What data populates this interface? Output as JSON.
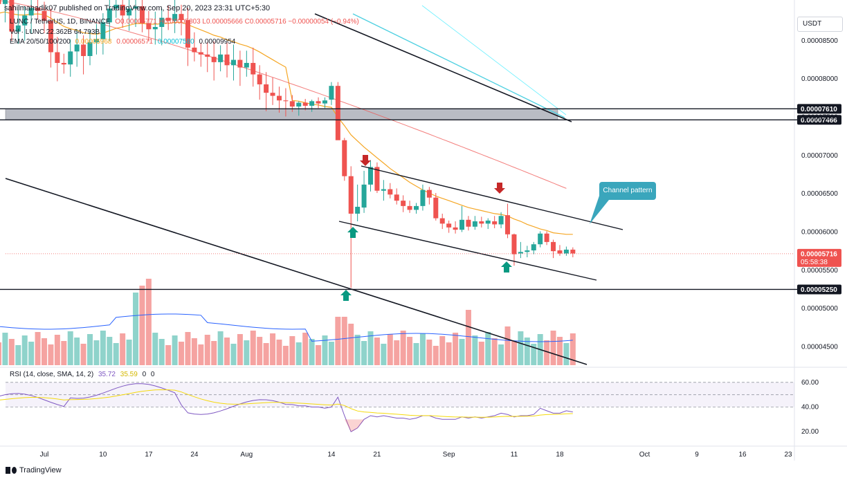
{
  "header": {
    "caption": "sahilmahadik07 published on TradingView.com, Sep 20, 2023 23:31 UTC+5:30"
  },
  "legend": {
    "symbol_line": "LUNC / TetherUS, 1D, BINANCE",
    "ohlc": "O0.00005771  H0.00005803  L0.00005666  C0.00005716  −0.00000054 (−0.94%)",
    "vol_line": "Vol · LUNC  22.362B  64.793B",
    "ema_label": "EMA 20/50/100/200",
    "ema_values": [
      "0.00005968",
      "0.00006571",
      "0.00007580",
      "0.00009954"
    ],
    "rsi_line": "RSI (14, close, SMA, 14, 2)",
    "rsi_values": [
      "35.72",
      "35.59",
      "0",
      "0"
    ]
  },
  "currency_button": "USDT",
  "callout_text": "Channel pattern",
  "footer_brand": "TradingView",
  "colors": {
    "up": "#26a69a",
    "down": "#ef5350",
    "ema20": "#f5a623",
    "ema50": "#ef5350",
    "ema100": "#4dd0e1",
    "ema200": "#00e5ff",
    "rsi": "#7e57c2",
    "rsi_ma": "#f5d90a",
    "volume_ma": "#2962ff",
    "callout": "#3aa6bc",
    "arrow_up": "#089981",
    "arrow_down": "#c62828"
  },
  "chart_data": {
    "type": "candlestick",
    "symbol": "LUNC / TetherUS",
    "interval": "1D",
    "exchange": "BINANCE",
    "price_axis": {
      "ticks": [
        8.5e-05,
        8e-05,
        7.5e-05,
        7e-05,
        6.5e-05,
        6e-05,
        5.5e-05,
        5e-05,
        4.5e-05
      ],
      "tick_labels": [
        "0.00008500",
        "0.00008000",
        "0.00007500",
        "0.00007000",
        "0.00006500",
        "0.00006000",
        "0.00005500",
        "0.00005000",
        "0.00004500"
      ],
      "range": [
        4.26e-05,
        8.96e-05
      ]
    },
    "time_axis": {
      "labels": [
        "Jul",
        "10",
        "17",
        "24",
        "Aug",
        "14",
        "21",
        "Sep",
        "11",
        "18",
        "Oct",
        "9",
        "16",
        "23"
      ]
    },
    "levels": [
      {
        "price": 7.61e-05,
        "label": "0.00007610"
      },
      {
        "price": 7.466e-05,
        "label": "0.00007466"
      },
      {
        "price": 5.25e-05,
        "label": "0.00005250"
      }
    ],
    "supply_zone": [
      7.466e-05,
      7.61e-05
    ],
    "last_price": {
      "value": 5.716e-05,
      "label": "0.00005716",
      "countdown": "05:58:38"
    },
    "candles_recent": [
      {
        "date": "Aug 8",
        "o": 7.71e-05,
        "h": 7.79e-05,
        "l": 7.57e-05,
        "c": 7.64e-05
      },
      {
        "date": "Aug 9",
        "o": 7.64e-05,
        "h": 7.71e-05,
        "l": 7.52e-05,
        "c": 7.69e-05
      },
      {
        "date": "Aug 10",
        "o": 7.69e-05,
        "h": 7.74e-05,
        "l": 7.59e-05,
        "c": 7.65e-05
      },
      {
        "date": "Aug 11",
        "o": 7.65e-05,
        "h": 7.73e-05,
        "l": 7.57e-05,
        "c": 7.71e-05
      },
      {
        "date": "Aug 12",
        "o": 7.71e-05,
        "h": 7.76e-05,
        "l": 7.62e-05,
        "c": 7.68e-05
      },
      {
        "date": "Aug 13",
        "o": 7.68e-05,
        "h": 7.76e-05,
        "l": 7.62e-05,
        "c": 7.72e-05
      },
      {
        "date": "Aug 14",
        "o": 7.73e-05,
        "h": 7.96e-05,
        "l": 7.66e-05,
        "c": 7.91e-05
      },
      {
        "date": "Aug 15",
        "o": 7.91e-05,
        "h": 7.96e-05,
        "l": 7.22e-05,
        "c": 7.2e-05
      },
      {
        "date": "Aug 16",
        "o": 7.2e-05,
        "h": 7.23e-05,
        "l": 6.67e-05,
        "c": 6.73e-05
      },
      {
        "date": "Aug 17",
        "o": 6.73e-05,
        "h": 6.86e-05,
        "l": 5.27e-05,
        "c": 6.24e-05
      },
      {
        "date": "Aug 18",
        "o": 6.24e-05,
        "h": 6.62e-05,
        "l": 6.14e-05,
        "c": 6.33e-05
      },
      {
        "date": "Aug 19",
        "o": 6.32e-05,
        "h": 6.8e-05,
        "l": 6.25e-05,
        "c": 6.62e-05
      },
      {
        "date": "Aug 20",
        "o": 6.62e-05,
        "h": 6.94e-05,
        "l": 6.53e-05,
        "c": 6.85e-05
      },
      {
        "date": "Aug 21",
        "o": 6.85e-05,
        "h": 6.91e-05,
        "l": 6.51e-05,
        "c": 6.54e-05
      },
      {
        "date": "Aug 22",
        "o": 6.54e-05,
        "h": 6.68e-05,
        "l": 6.41e-05,
        "c": 6.56e-05
      },
      {
        "date": "Aug 23",
        "o": 6.56e-05,
        "h": 6.64e-05,
        "l": 6.44e-05,
        "c": 6.49e-05
      },
      {
        "date": "Aug 24",
        "o": 6.49e-05,
        "h": 6.57e-05,
        "l": 6.36e-05,
        "c": 6.41e-05
      },
      {
        "date": "Aug 25",
        "o": 6.41e-05,
        "h": 6.48e-05,
        "l": 6.26e-05,
        "c": 6.34e-05
      },
      {
        "date": "Aug 26",
        "o": 6.34e-05,
        "h": 6.41e-05,
        "l": 6.25e-05,
        "c": 6.29e-05
      },
      {
        "date": "Aug 27",
        "o": 6.29e-05,
        "h": 6.38e-05,
        "l": 6.24e-05,
        "c": 6.34e-05
      },
      {
        "date": "Aug 28",
        "o": 6.34e-05,
        "h": 6.62e-05,
        "l": 6.28e-05,
        "c": 6.55e-05
      },
      {
        "date": "Aug 29",
        "o": 6.55e-05,
        "h": 6.59e-05,
        "l": 6.36e-05,
        "c": 6.45e-05
      },
      {
        "date": "Aug 30",
        "o": 6.45e-05,
        "h": 6.51e-05,
        "l": 6.15e-05,
        "c": 6.18e-05
      },
      {
        "date": "Aug 31",
        "o": 6.18e-05,
        "h": 6.24e-05,
        "l": 6.04e-05,
        "c": 6.11e-05
      },
      {
        "date": "Sep 1",
        "o": 6.11e-05,
        "h": 6.15e-05,
        "l": 5.99e-05,
        "c": 6.06e-05
      },
      {
        "date": "Sep 2",
        "o": 6.06e-05,
        "h": 6.14e-05,
        "l": 5.98e-05,
        "c": 6.03e-05
      },
      {
        "date": "Sep 3",
        "o": 6.03e-05,
        "h": 6.34e-05,
        "l": 6e-05,
        "c": 6.16e-05
      },
      {
        "date": "Sep 4",
        "o": 6.16e-05,
        "h": 6.21e-05,
        "l": 6.02e-05,
        "c": 6.07e-05
      },
      {
        "date": "Sep 5",
        "o": 6.07e-05,
        "h": 6.21e-05,
        "l": 6.03e-05,
        "c": 6.14e-05
      },
      {
        "date": "Sep 6",
        "o": 6.14e-05,
        "h": 6.2e-05,
        "l": 6.06e-05,
        "c": 6.11e-05
      },
      {
        "date": "Sep 7",
        "o": 6.11e-05,
        "h": 6.18e-05,
        "l": 6.04e-05,
        "c": 6.15e-05
      },
      {
        "date": "Sep 8",
        "o": 6.14e-05,
        "h": 6.21e-05,
        "l": 6.05e-05,
        "c": 6.1e-05
      },
      {
        "date": "Sep 9",
        "o": 6.1e-05,
        "h": 6.26e-05,
        "l": 6.05e-05,
        "c": 6.21e-05
      },
      {
        "date": "Sep 10",
        "o": 6.22e-05,
        "h": 6.37e-05,
        "l": 5.92e-05,
        "c": 5.97e-05
      },
      {
        "date": "Sep 11",
        "o": 5.97e-05,
        "h": 5.98e-05,
        "l": 5.56e-05,
        "c": 5.71e-05
      },
      {
        "date": "Sep 12",
        "o": 5.72e-05,
        "h": 5.87e-05,
        "l": 5.66e-05,
        "c": 5.74e-05
      },
      {
        "date": "Sep 13",
        "o": 5.74e-05,
        "h": 5.82e-05,
        "l": 5.67e-05,
        "c": 5.76e-05
      },
      {
        "date": "Sep 14",
        "o": 5.76e-05,
        "h": 5.87e-05,
        "l": 5.71e-05,
        "c": 5.84e-05
      },
      {
        "date": "Sep 15",
        "o": 5.84e-05,
        "h": 6.01e-05,
        "l": 5.8e-05,
        "c": 5.98e-05
      },
      {
        "date": "Sep 16",
        "o": 5.98e-05,
        "h": 6.01e-05,
        "l": 5.83e-05,
        "c": 5.87e-05
      },
      {
        "date": "Sep 17",
        "o": 5.87e-05,
        "h": 5.9e-05,
        "l": 5.66e-05,
        "c": 5.75e-05
      },
      {
        "date": "Sep 18",
        "o": 5.76e-05,
        "h": 5.83e-05,
        "l": 5.69e-05,
        "c": 5.72e-05
      },
      {
        "date": "Sep 19",
        "o": 5.72e-05,
        "h": 5.81e-05,
        "l": 5.69e-05,
        "c": 5.77e-05
      },
      {
        "date": "Sep 20",
        "o": 5.77e-05,
        "h": 5.8e-05,
        "l": 5.67e-05,
        "c": 5.72e-05
      }
    ],
    "ema20_values": [
      7.72e-05,
      7.71e-05,
      7.69e-05,
      7.67e-05,
      7.66e-05,
      7.64e-05,
      7.63e-05,
      7.5e-05,
      7.39e-05,
      7.27e-05,
      7.19e-05,
      7.11e-05,
      7.04e-05,
      6.97e-05,
      6.9e-05,
      6.83e-05,
      6.77e-05,
      6.71e-05,
      6.65e-05,
      6.6e-05,
      6.55e-05,
      6.51e-05,
      6.47e-05,
      6.44e-05,
      6.41e-05,
      6.38e-05,
      6.35e-05,
      6.32e-05,
      6.3e-05,
      6.28e-05,
      6.26e-05,
      6.24e-05,
      6.23e-05,
      6.21e-05,
      6.17e-05,
      6.14e-05,
      6.1e-05,
      6.07e-05,
      6.04e-05,
      6.02e-05,
      5.99e-05,
      5.98e-05,
      5.97e-05,
      5.97e-05
    ],
    "ema50_start_end": [
      7.76e-05,
      6.57e-05
    ],
    "volume_axis": {
      "units": "B"
    },
    "rsi_axis": {
      "ticks": [
        60,
        40,
        20
      ],
      "tick_labels": [
        "60.00",
        "40.00",
        "20.00"
      ],
      "band": [
        30,
        70
      ]
    },
    "rsi_values_recent": [
      42,
      41,
      41,
      40,
      40,
      39,
      40,
      48,
      33,
      20,
      23,
      30,
      33,
      32,
      33,
      32,
      31,
      31,
      30,
      31,
      33,
      33,
      31,
      30,
      30,
      30,
      32,
      31,
      32,
      31,
      32,
      33,
      35,
      34,
      32,
      33,
      33,
      34,
      39,
      37,
      35,
      35,
      37,
      36
    ]
  }
}
